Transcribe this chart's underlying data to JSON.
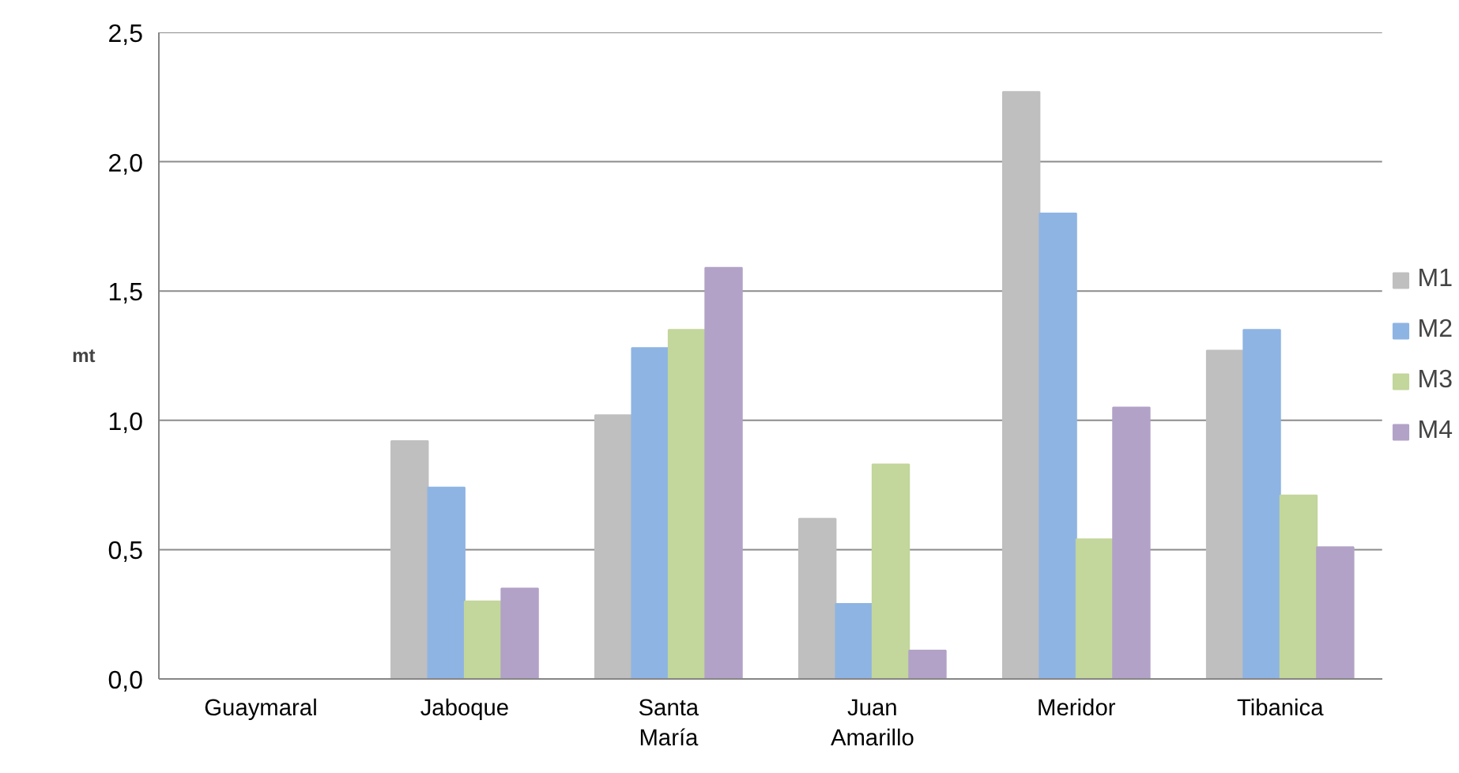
{
  "chart_data": {
    "type": "bar",
    "ylabel": "mt",
    "categories": [
      "Guaymaral",
      "Jaboque",
      "Santa María",
      "Juan Amarillo",
      "Meridor",
      "Tibanica"
    ],
    "series": [
      {
        "name": "M1",
        "color": "#bfbfbf",
        "values": [
          0,
          0.92,
          1.02,
          0.62,
          2.27,
          1.27
        ]
      },
      {
        "name": "M2",
        "color": "#8eb4e3",
        "values": [
          0,
          0.74,
          1.28,
          0.29,
          1.8,
          1.35
        ]
      },
      {
        "name": "M3",
        "color": "#c3d69b",
        "values": [
          0,
          0.3,
          1.35,
          0.83,
          0.54,
          0.71
        ]
      },
      {
        "name": "M4",
        "color": "#b2a2c7",
        "values": [
          0,
          0.35,
          1.59,
          0.11,
          1.05,
          0.51
        ]
      }
    ],
    "ylim": [
      0,
      2.5
    ],
    "yticks": [
      {
        "value": 0,
        "label": "0,0"
      },
      {
        "value": 0.5,
        "label": "0,5"
      },
      {
        "value": 1,
        "label": "1,0"
      },
      {
        "value": 1.5,
        "label": "1,5"
      },
      {
        "value": 2,
        "label": "2,0"
      },
      {
        "value": 2.5,
        "label": "2,5"
      }
    ],
    "grid": "y",
    "legend": "right"
  }
}
